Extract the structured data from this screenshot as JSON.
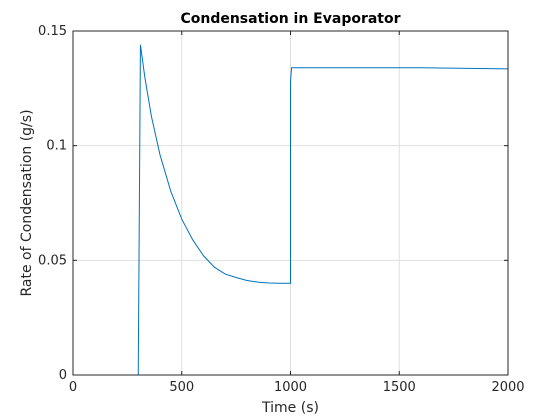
{
  "chart_data": {
    "type": "line",
    "title": "Condensation in Evaporator",
    "xlabel": "Time (s)",
    "ylabel": "Rate of Condensation (g/s)",
    "xlim": [
      0,
      2000
    ],
    "ylim": [
      0,
      0.15
    ],
    "xticks": [
      0,
      500,
      1000,
      1500,
      2000
    ],
    "xtick_labels": [
      "0",
      "500",
      "1000",
      "1500",
      "2000"
    ],
    "yticks": [
      0,
      0.05,
      0.1,
      0.15
    ],
    "ytick_labels": [
      "0",
      "0.05",
      "0.1",
      "0.15"
    ],
    "grid": true,
    "colors": {
      "series": "#0072BD"
    },
    "series": [
      {
        "x": [
          0,
          300,
          300,
          310,
          330,
          360,
          400,
          450,
          500,
          550,
          600,
          650,
          700,
          750,
          800,
          850,
          900,
          950,
          1000,
          1000,
          1005,
          1100,
          1300,
          1600,
          2000
        ],
        "y": [
          0,
          0,
          0.001,
          0.144,
          0.13,
          0.113,
          0.096,
          0.08,
          0.068,
          0.059,
          0.052,
          0.047,
          0.044,
          0.0425,
          0.0412,
          0.0405,
          0.0401,
          0.04,
          0.04,
          0.128,
          0.134,
          0.134,
          0.134,
          0.134,
          0.1335
        ]
      }
    ]
  }
}
